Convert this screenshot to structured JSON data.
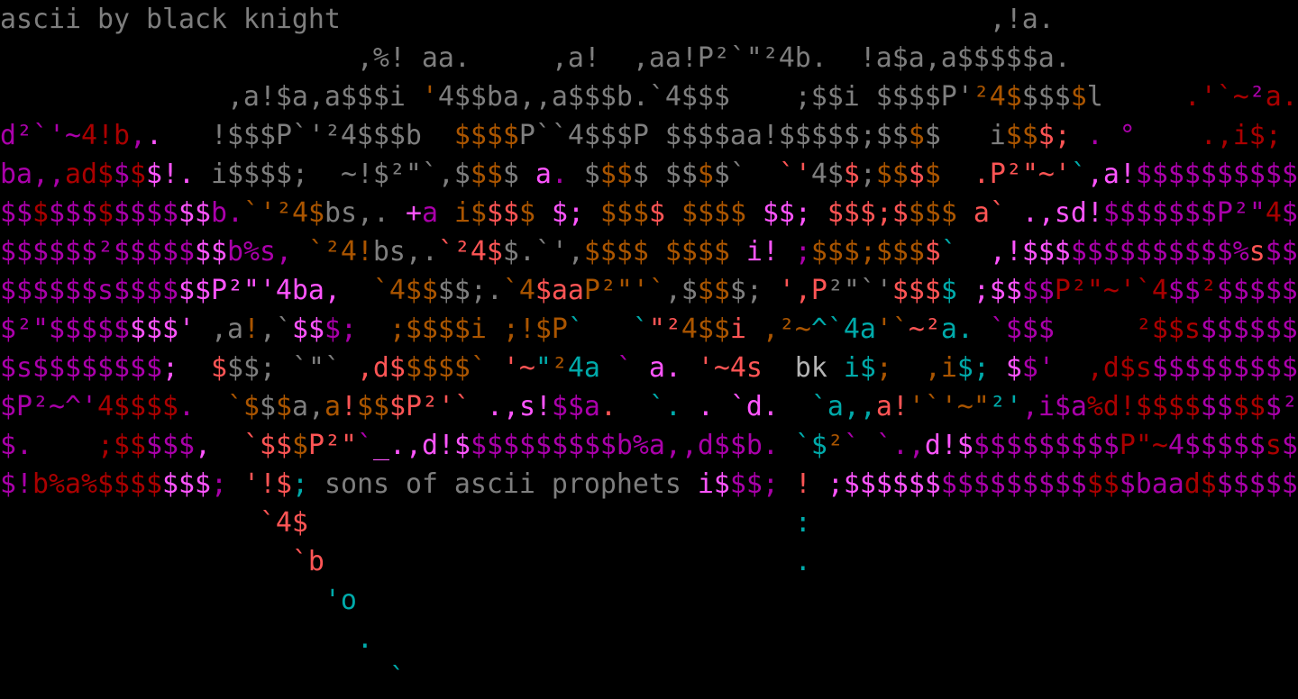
{
  "palette": {
    "G": "#7e7e7e",
    "W": "#b4b4b4",
    "O": "#aa5500",
    "R": "#aa0000",
    "r": "#ff5555",
    "M": "#aa00aa",
    "m": "#ff55ff",
    "C": "#00aaaa"
  },
  "credit": "ascii by black knight",
  "tagline": "sons of ascii prophets",
  "rows": [
    [
      [
        "ascii by black knight                                        ,!a.",
        "G"
      ]
    ],
    [
      [
        "                      ,%! aa.     ,a!  ,aa!P²`\"²4b.  !a$a,a$$$$$a.",
        "G"
      ]
    ],
    [
      [
        "              ,a!$a,a$$$i ",
        "G"
      ],
      [
        "'",
        "O"
      ],
      [
        "4$$ba,,a$$$b.`4$$$    ;$$i $$$$P'",
        "G"
      ],
      [
        "²4$",
        "O"
      ],
      [
        "$$$",
        "G"
      ],
      [
        "$",
        "O"
      ],
      [
        "l     ",
        "G"
      ],
      [
        ".'`~",
        "R"
      ],
      [
        "²",
        "M"
      ],
      [
        "a.",
        "R"
      ]
    ],
    [
      [
        "d²`'~",
        "M"
      ],
      [
        "4!b",
        "R"
      ],
      [
        ",",
        "M"
      ],
      [
        ".",
        "m"
      ],
      [
        "   !$$$P`'²4$$$b  ",
        "G"
      ],
      [
        "$$$$",
        "O"
      ],
      [
        "P``4$$$P $$$$aa!$$$$$;$$",
        "G"
      ],
      [
        "$",
        "O"
      ],
      [
        "$   i",
        "G"
      ],
      [
        "$$",
        "O"
      ],
      [
        "$;",
        "r"
      ],
      [
        " . °    ",
        "M"
      ],
      [
        ".,i$;",
        "R"
      ]
    ],
    [
      [
        "ba,,",
        "M"
      ],
      [
        "ad$",
        "R"
      ],
      [
        "$",
        "M"
      ],
      [
        "$",
        "R"
      ],
      [
        "$!.",
        "m"
      ],
      [
        " i$$$$;  ~!$²\"`,$",
        "G"
      ],
      [
        "$$",
        "O"
      ],
      [
        "$ ",
        "G"
      ],
      [
        "a",
        "m"
      ],
      [
        ". ",
        "M"
      ],
      [
        "$",
        "G"
      ],
      [
        "$$",
        "O"
      ],
      [
        "$ $$",
        "G"
      ],
      [
        "$",
        "O"
      ],
      [
        "$`  ",
        "G"
      ],
      [
        "`'",
        "r"
      ],
      [
        "4$",
        "G"
      ],
      [
        "$",
        "r"
      ],
      [
        ";",
        "G"
      ],
      [
        "$$",
        "O"
      ],
      [
        "$",
        "r"
      ],
      [
        "$  ",
        "O"
      ],
      [
        ".P²\"~'",
        "r"
      ],
      [
        "`",
        "C"
      ],
      [
        ",a!",
        "m"
      ],
      [
        "$$$$$$$$$$",
        "M"
      ]
    ],
    [
      [
        "$$",
        "M"
      ],
      [
        "$",
        "R"
      ],
      [
        "$$$",
        "M"
      ],
      [
        "$",
        "R"
      ],
      [
        "$$$$",
        "M"
      ],
      [
        "$$",
        "m"
      ],
      [
        "b.",
        "M"
      ],
      [
        "`'²4$",
        "O"
      ],
      [
        "bs,. ",
        "G"
      ],
      [
        "+",
        "m"
      ],
      [
        "a ",
        "M"
      ],
      [
        "i$",
        "O"
      ],
      [
        "$$",
        "r"
      ],
      [
        "$ ",
        "O"
      ],
      [
        "$; ",
        "m"
      ],
      [
        "$$$",
        "O"
      ],
      [
        "$ ",
        "r"
      ],
      [
        "$$$$ ",
        "O"
      ],
      [
        "$$; ",
        "m"
      ],
      [
        "$$$;$",
        "r"
      ],
      [
        "$$$ ",
        "O"
      ],
      [
        "a` ",
        "r"
      ],
      [
        ".,sd!",
        "m"
      ],
      [
        "$$$$$$$P²\"",
        "M"
      ],
      [
        "4",
        "R"
      ],
      [
        "$$",
        "M"
      ]
    ],
    [
      [
        "$$$$$$²$$$$$",
        "M"
      ],
      [
        "$$",
        "m"
      ],
      [
        "b%s, ",
        "M"
      ],
      [
        "`²4!",
        "O"
      ],
      [
        "bs,.",
        "G"
      ],
      [
        "`²4$",
        "r"
      ],
      [
        "$.`',",
        "G"
      ],
      [
        "$$$$ $$$$ ",
        "O"
      ],
      [
        "i!",
        "m"
      ],
      [
        " ;",
        "M"
      ],
      [
        "$$$;$$$",
        "O"
      ],
      [
        "$",
        "r"
      ],
      [
        "`  ",
        "C"
      ],
      [
        ",!$$$",
        "m"
      ],
      [
        "$$$$$$$$$$%",
        "M"
      ],
      [
        "s",
        "r"
      ],
      [
        "$$$",
        "M"
      ]
    ],
    [
      [
        "$$$$$$s$$$$",
        "M"
      ],
      [
        "$$P²\"'4ba, ",
        "m"
      ],
      [
        " `4$$",
        "O"
      ],
      [
        "$$;.",
        "G"
      ],
      [
        "`4",
        "O"
      ],
      [
        "$aa",
        "r"
      ],
      [
        "P²\"'`",
        "O"
      ],
      [
        ",$",
        "G"
      ],
      [
        "$$",
        "O"
      ],
      [
        "$; ",
        "G"
      ],
      [
        "',P",
        "r"
      ],
      [
        "²\"`'",
        "G"
      ],
      [
        "$$$",
        "r"
      ],
      [
        "$ ",
        "C"
      ],
      [
        ";$$",
        "m"
      ],
      [
        "$$",
        "M"
      ],
      [
        "P²\"~'`4",
        "R"
      ],
      [
        "$$",
        "M"
      ],
      [
        "²",
        "R"
      ],
      [
        "$$$$$$$",
        "M"
      ]
    ],
    [
      [
        "$²\"$$$$$",
        "M"
      ],
      [
        "$$$'",
        "m"
      ],
      [
        " ,a",
        "G"
      ],
      [
        "!",
        "O"
      ],
      [
        ",`",
        "G"
      ],
      [
        "$$",
        "m"
      ],
      [
        "$;  ",
        "M"
      ],
      [
        ";$$$$i ;!$P",
        "O"
      ],
      [
        "`   `",
        "C"
      ],
      [
        "\"²",
        "r"
      ],
      [
        "4$$",
        "O"
      ],
      [
        "i ",
        "r"
      ],
      [
        ",²~",
        "O"
      ],
      [
        "^`4a",
        "C"
      ],
      [
        "'`",
        "O"
      ],
      [
        "~²",
        "r"
      ],
      [
        "a. ",
        "C"
      ],
      [
        "`$$$     ",
        "M"
      ],
      [
        "²$$s",
        "R"
      ],
      [
        "$$$$$$",
        "M"
      ]
    ],
    [
      [
        "$s$$$$$$$$",
        "M"
      ],
      [
        ";  ",
        "m"
      ],
      [
        "$",
        "r"
      ],
      [
        "$$; `\"` ",
        "G"
      ],
      [
        ",d$",
        "r"
      ],
      [
        "$$$$` ",
        "O"
      ],
      [
        "'~",
        "r"
      ],
      [
        "\"",
        "C"
      ],
      [
        "²",
        "O"
      ],
      [
        "4a ",
        "C"
      ],
      [
        "` ",
        "M"
      ],
      [
        "a. ",
        "m"
      ],
      [
        "'~4s  ",
        "r"
      ],
      [
        "bk ",
        "W"
      ],
      [
        "i$",
        "C"
      ],
      [
        "; ",
        "O"
      ],
      [
        " ,i",
        "O"
      ],
      [
        "$; ",
        "C"
      ],
      [
        "$",
        "m"
      ],
      [
        "$'  ",
        "M"
      ],
      [
        ",d$s",
        "R"
      ],
      [
        "$$$$$$$$$",
        "M"
      ]
    ],
    [
      [
        "$P²~^'",
        "M"
      ],
      [
        "4$$$$",
        "R"
      ],
      [
        ".  ",
        "M"
      ],
      [
        "`$",
        "O"
      ],
      [
        "$",
        "G"
      ],
      [
        "$",
        "O"
      ],
      [
        "a,",
        "G"
      ],
      [
        "a",
        "O"
      ],
      [
        "!",
        "r"
      ],
      [
        "$$",
        "O"
      ],
      [
        "$P²'`",
        "r"
      ],
      [
        " .,s!",
        "m"
      ],
      [
        "$$a",
        "M"
      ],
      [
        ".",
        "r"
      ],
      [
        "  `.",
        "C"
      ],
      [
        " . `d.  ",
        "m"
      ],
      [
        "`a,,",
        "C"
      ],
      [
        "a!",
        "r"
      ],
      [
        "'`'~\"",
        "O"
      ],
      [
        "²'",
        "C"
      ],
      [
        ",i$a",
        "M"
      ],
      [
        "%d!$$$$",
        "R"
      ],
      [
        "$$",
        "M"
      ],
      [
        "$$",
        "R"
      ],
      [
        "$²$$",
        "M"
      ]
    ],
    [
      [
        "$.    ",
        "M"
      ],
      [
        ";$$",
        "R"
      ],
      [
        "$$$",
        "M"
      ],
      [
        ",  ",
        "m"
      ],
      [
        "`$$",
        "r"
      ],
      [
        "$",
        "O"
      ],
      [
        "P²\"",
        "r"
      ],
      [
        "`",
        "M"
      ],
      [
        "_.,d!$",
        "m"
      ],
      [
        "$$$$$$$$$b%a,,d$$b. ",
        "M"
      ],
      [
        "`$",
        "C"
      ],
      [
        "²",
        "O"
      ],
      [
        "` `.,",
        "M"
      ],
      [
        "d!$",
        "m"
      ],
      [
        "$$$$$$$$$",
        "M"
      ],
      [
        "P\"~",
        "R"
      ],
      [
        "4$$$$$",
        "M"
      ],
      [
        "s",
        "R"
      ],
      [
        "$$",
        "M"
      ]
    ],
    [
      [
        "$!",
        "M"
      ],
      [
        "b%a%$$$$",
        "R"
      ],
      [
        "$$$",
        "m"
      ],
      [
        "; ",
        "M"
      ],
      [
        "'!$",
        "r"
      ],
      [
        "; ",
        "C"
      ],
      [
        "sons of ascii prophets ",
        "G"
      ],
      [
        "i$",
        "m"
      ],
      [
        "$$; ",
        "M"
      ],
      [
        "! ",
        "r"
      ],
      [
        ";$$$$$$",
        "m"
      ],
      [
        "$$$$$$$$$",
        "M"
      ],
      [
        "$$",
        "R"
      ],
      [
        "$baa",
        "M"
      ],
      [
        "d$",
        "R"
      ],
      [
        "$$$$$$$",
        "M"
      ]
    ],
    [
      [
        "                `4$",
        "r"
      ],
      [
        "                              :",
        "C"
      ]
    ],
    [
      [
        "                  `b",
        "r"
      ],
      [
        "                             .",
        "C"
      ]
    ],
    [
      [
        "                    'o",
        "C"
      ]
    ],
    [
      [
        "                      .",
        "C"
      ]
    ],
    [
      [
        "                        `",
        "C"
      ]
    ]
  ]
}
